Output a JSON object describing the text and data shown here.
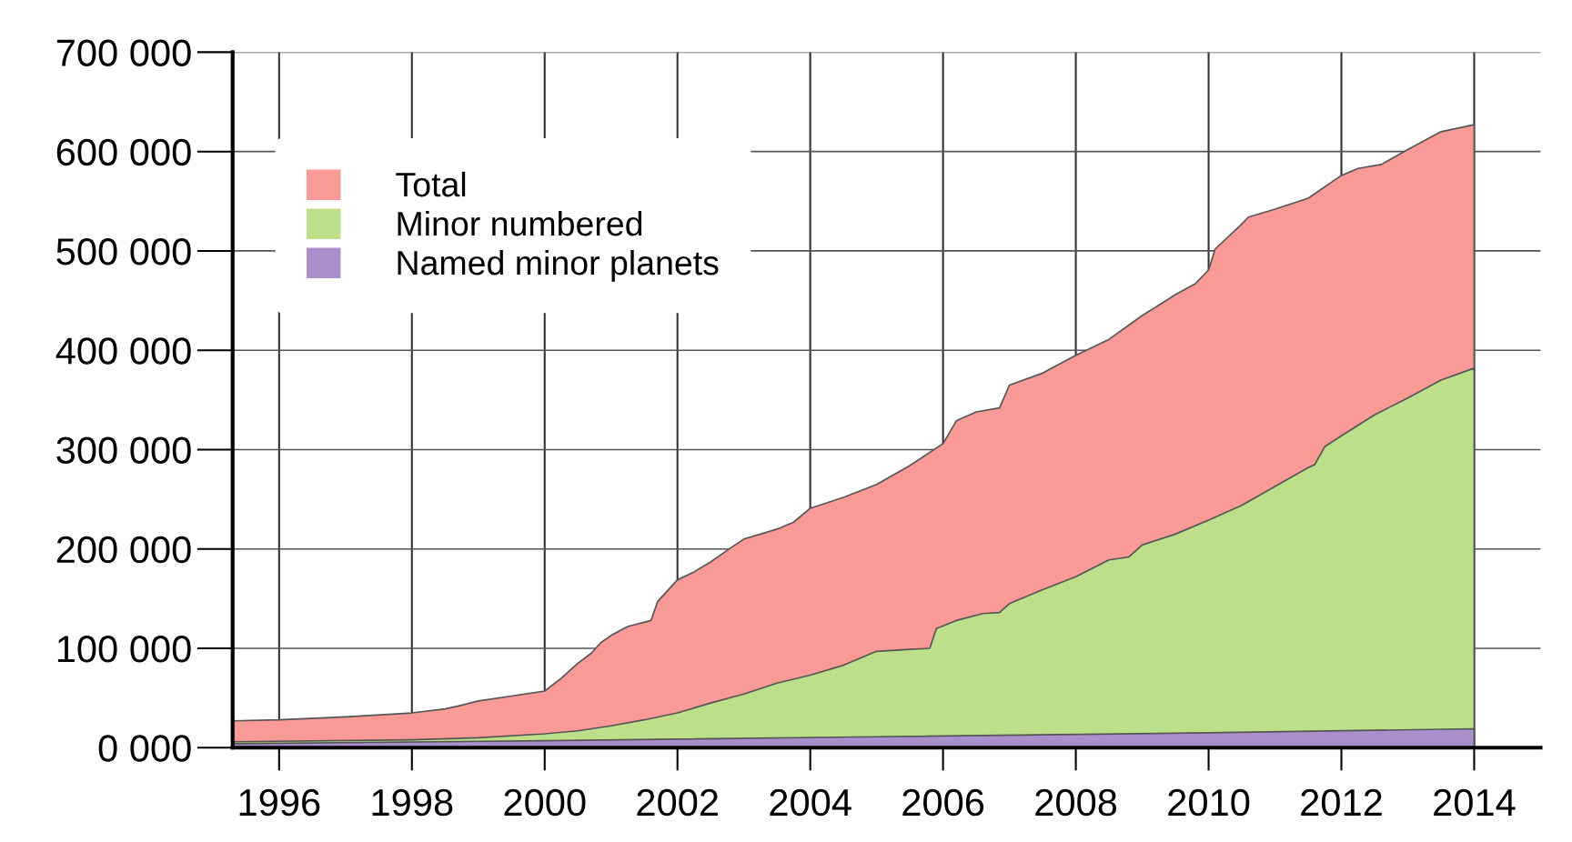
{
  "chart_data": {
    "type": "area",
    "series": [
      {
        "name": "Total",
        "color": "#f99a96",
        "x": [
          1995.3,
          1996,
          1997,
          1998,
          1998.5,
          1998.7,
          1999,
          1999.5,
          2000,
          2000.25,
          2000.5,
          2000.7,
          2000.85,
          2001,
          2001.25,
          2001.6,
          2001.7,
          2001.85,
          2002,
          2002.25,
          2002.5,
          2002.8,
          2003,
          2003.25,
          2003.5,
          2003.75,
          2004,
          2004.5,
          2005,
          2005.5,
          2006,
          2006.2,
          2006.5,
          2006.85,
          2007,
          2007.5,
          2008,
          2008.5,
          2009,
          2009.5,
          2009.8,
          2010,
          2010.1,
          2010.5,
          2010.6,
          2011,
          2011.5,
          2012,
          2012.25,
          2012.6,
          2013,
          2013.5,
          2014
        ],
        "values": [
          27000,
          28000,
          31000,
          35000,
          39000,
          42000,
          47000,
          52000,
          57000,
          70000,
          85000,
          95000,
          106000,
          113000,
          122000,
          128000,
          147000,
          158000,
          169000,
          177000,
          187000,
          201000,
          210000,
          215000,
          220000,
          227000,
          241000,
          252000,
          265000,
          284000,
          306000,
          329000,
          338000,
          342000,
          365000,
          377000,
          395000,
          411000,
          435000,
          456000,
          467000,
          481000,
          502000,
          527000,
          534000,
          542000,
          553000,
          576000,
          583000,
          587000,
          602000,
          620000,
          627000
        ]
      },
      {
        "name": "Minor numbered",
        "color": "#bddf8a",
        "x": [
          1995.3,
          1998,
          1999,
          2000,
          2000.5,
          2001,
          2001.5,
          2002,
          2002.5,
          2003,
          2003.5,
          2004,
          2004.5,
          2005,
          2005.5,
          2005.8,
          2005.9,
          2006.2,
          2006.6,
          2006.85,
          2007,
          2007.5,
          2008,
          2008.5,
          2008.8,
          2009,
          2009.5,
          2010,
          2010.5,
          2011,
          2011.5,
          2011.6,
          2011.75,
          2012,
          2012.5,
          2013,
          2013.5,
          2014
        ],
        "values": [
          6000,
          8000,
          10000,
          14000,
          17000,
          22000,
          28000,
          35000,
          45000,
          54000,
          65000,
          73000,
          83000,
          97000,
          99000,
          100000,
          120000,
          128000,
          135000,
          136000,
          145000,
          159000,
          172000,
          189000,
          192000,
          204000,
          215000,
          229000,
          244000,
          263000,
          282000,
          285000,
          303000,
          314000,
          335000,
          352000,
          370000,
          382000
        ]
      },
      {
        "name": "Named minor planets",
        "color": "#a98fcb",
        "x": [
          1995.3,
          2000,
          2005,
          2010,
          2014
        ],
        "values": [
          4000,
          7000,
          11000,
          15000,
          19000
        ]
      }
    ],
    "xlim": [
      1995.3,
      2015
    ],
    "xticks": [
      1996,
      1998,
      2000,
      2002,
      2004,
      2006,
      2008,
      2010,
      2012,
      2014
    ],
    "ylim": [
      0,
      700000
    ],
    "yticks": [
      {
        "value": 0,
        "label": "0 000"
      },
      {
        "value": 100000,
        "label": "100 000"
      },
      {
        "value": 200000,
        "label": "200 000"
      },
      {
        "value": 300000,
        "label": "300 000"
      },
      {
        "value": 400000,
        "label": "400 000"
      },
      {
        "value": 500000,
        "label": "500 000"
      },
      {
        "value": 600000,
        "label": "600 000"
      },
      {
        "value": 700000,
        "label": "700 000"
      }
    ],
    "grid": true,
    "legend": "top left"
  }
}
